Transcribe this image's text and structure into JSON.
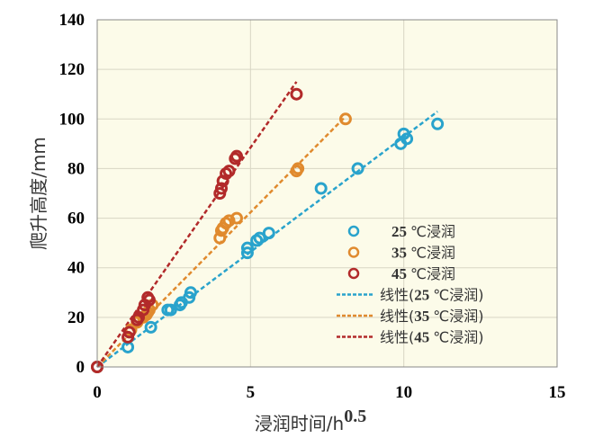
{
  "chart_data": {
    "type": "scatter",
    "xlabel": "浸润时间/h",
    "xlabel_sup": "0.5",
    "ylabel": "爬升高度/mm",
    "xlim": [
      0,
      15
    ],
    "ylim": [
      0,
      140
    ],
    "x_ticks": [
      0,
      5,
      10,
      15
    ],
    "y_ticks": [
      0,
      20,
      40,
      60,
      80,
      100,
      120,
      140
    ],
    "grid": true,
    "legend_position": "bottom-right",
    "series": [
      {
        "name_num": "25",
        "name_suffix": "℃浸润",
        "color": "#29a3cc",
        "points": [
          [
            0,
            0
          ],
          [
            1,
            8
          ],
          [
            1.75,
            16
          ],
          [
            2.3,
            23
          ],
          [
            2.4,
            23
          ],
          [
            2.7,
            25
          ],
          [
            2.75,
            26
          ],
          [
            3,
            28
          ],
          [
            3.05,
            30
          ],
          [
            4.9,
            46
          ],
          [
            4.9,
            48
          ],
          [
            5.2,
            51
          ],
          [
            5.3,
            52
          ],
          [
            5.6,
            54
          ],
          [
            7.3,
            72
          ],
          [
            8.5,
            80
          ],
          [
            9.9,
            90
          ],
          [
            10.1,
            92
          ],
          [
            10,
            94
          ],
          [
            11.1,
            98
          ]
        ]
      },
      {
        "name_num": "35",
        "name_suffix": "℃浸润",
        "color": "#e08a2e",
        "points": [
          [
            0,
            0
          ],
          [
            1.1,
            15
          ],
          [
            1.3,
            18
          ],
          [
            1.5,
            20
          ],
          [
            1.6,
            21
          ],
          [
            1.65,
            22
          ],
          [
            1.7,
            23
          ],
          [
            1.8,
            25
          ],
          [
            4,
            52
          ],
          [
            4.05,
            55
          ],
          [
            4.1,
            56
          ],
          [
            4.2,
            58
          ],
          [
            4.3,
            59
          ],
          [
            4.55,
            60
          ],
          [
            6.5,
            79
          ],
          [
            6.55,
            80
          ],
          [
            8.1,
            100
          ]
        ]
      },
      {
        "name_num": "45",
        "name_suffix": "℃浸润",
        "color": "#b22a2a",
        "points": [
          [
            0,
            0
          ],
          [
            1,
            12
          ],
          [
            1.05,
            14
          ],
          [
            1.3,
            19
          ],
          [
            1.35,
            20
          ],
          [
            1.5,
            23
          ],
          [
            1.55,
            25
          ],
          [
            1.7,
            27
          ],
          [
            1.65,
            28
          ],
          [
            4,
            70
          ],
          [
            4.05,
            72
          ],
          [
            4.1,
            75
          ],
          [
            4.2,
            78
          ],
          [
            4.3,
            79
          ],
          [
            4.5,
            84
          ],
          [
            4.55,
            85
          ],
          [
            6.5,
            110
          ]
        ]
      }
    ],
    "trendlines": [
      {
        "name_prefix": "线性(",
        "name_num": "25",
        "name_suffix": "℃浸润)",
        "color": "#29a3cc",
        "x": [
          0,
          11.1
        ],
        "y": [
          0,
          103
        ]
      },
      {
        "name_prefix": "线性(",
        "name_num": "35",
        "name_suffix": "℃浸润)",
        "color": "#e08a2e",
        "x": [
          0,
          8.1
        ],
        "y": [
          0,
          101
        ]
      },
      {
        "name_prefix": "线性(",
        "name_num": "45",
        "name_suffix": "℃浸润)",
        "color": "#b22a2a",
        "x": [
          0,
          6.5
        ],
        "y": [
          0,
          115
        ]
      }
    ]
  }
}
